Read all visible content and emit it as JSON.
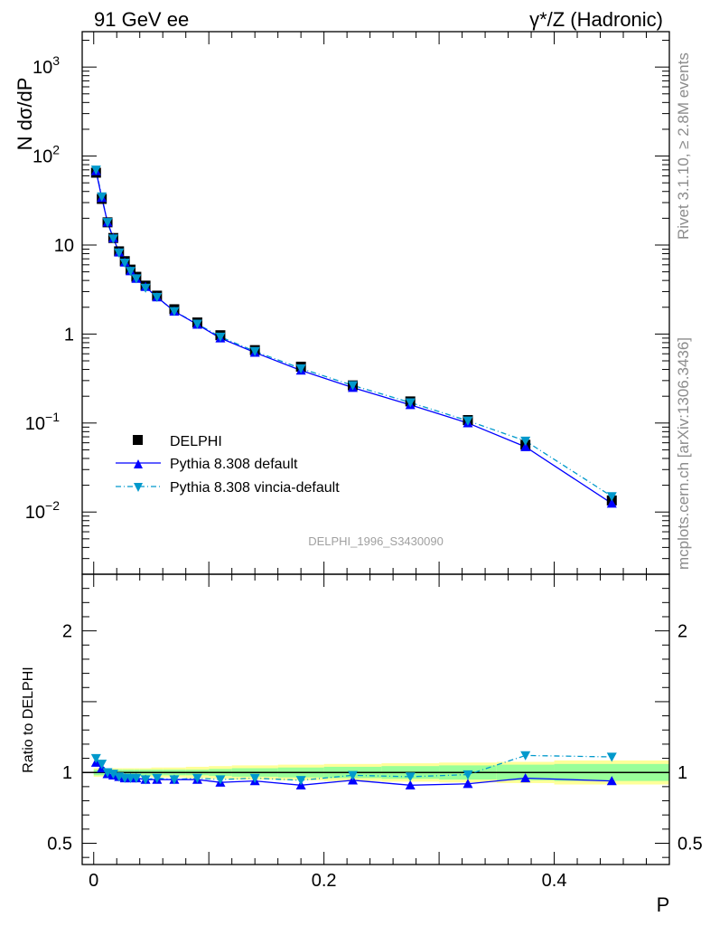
{
  "header": {
    "left_title": "91 GeV ee",
    "right_title": "γ*/Z (Hadronic)"
  },
  "side_text": {
    "rivet": "Rivet 3.1.10, ≥ 2.8M events",
    "mcplots": "mcplots.cern.ch [arXiv:1306.3436]"
  },
  "watermark": "DELPHI_1996_S3430090",
  "legend": {
    "entries": [
      "DELPHI",
      "Pythia 8.308 default",
      "Pythia 8.308 vincia-default"
    ]
  },
  "colors": {
    "data": "#000000",
    "default": "#0000ff",
    "vincia": "#0099cc",
    "band_inner": "#99ff99",
    "band_outer": "#ffff99"
  },
  "chart_data": [
    {
      "type": "scatter",
      "panel": "main",
      "ylabel": "N dσ/dP",
      "yscale": "log",
      "ylim": [
        0.002,
        2500
      ],
      "xlim": [
        -0.01,
        0.5
      ],
      "y_ticks": [
        "10^{-2}",
        "10^{-1}",
        "1",
        "10",
        "10^{2}",
        "10^{3}"
      ],
      "series": [
        {
          "name": "DELPHI",
          "marker": "square",
          "x": [
            0.002,
            0.007,
            0.012,
            0.017,
            0.022,
            0.027,
            0.032,
            0.037,
            0.045,
            0.055,
            0.07,
            0.09,
            0.11,
            0.14,
            0.18,
            0.225,
            0.275,
            0.325,
            0.375,
            0.45
          ],
          "y": [
            65,
            33,
            18,
            12,
            8.5,
            6.6,
            5.3,
            4.4,
            3.5,
            2.7,
            1.9,
            1.35,
            0.97,
            0.66,
            0.43,
            0.265,
            0.175,
            0.108,
            0.057,
            0.0135
          ]
        },
        {
          "name": "Pythia 8.308 default",
          "marker": "triangle-up",
          "x": [
            0.002,
            0.007,
            0.012,
            0.017,
            0.022,
            0.027,
            0.032,
            0.037,
            0.045,
            0.055,
            0.07,
            0.09,
            0.11,
            0.14,
            0.18,
            0.225,
            0.275,
            0.325,
            0.375,
            0.45
          ],
          "y": [
            68,
            34,
            18,
            12,
            8.3,
            6.4,
            5.1,
            4.2,
            3.4,
            2.6,
            1.8,
            1.28,
            0.9,
            0.62,
            0.39,
            0.25,
            0.16,
            0.1,
            0.054,
            0.0125
          ]
        },
        {
          "name": "Pythia 8.308 vincia-default",
          "marker": "triangle-down",
          "x": [
            0.002,
            0.007,
            0.012,
            0.017,
            0.022,
            0.027,
            0.032,
            0.037,
            0.045,
            0.055,
            0.07,
            0.09,
            0.11,
            0.14,
            0.18,
            0.225,
            0.275,
            0.325,
            0.375,
            0.45
          ],
          "y": [
            70,
            35,
            18,
            11.8,
            8.2,
            6.3,
            5.1,
            4.2,
            3.3,
            2.6,
            1.8,
            1.3,
            0.93,
            0.64,
            0.41,
            0.265,
            0.17,
            0.106,
            0.063,
            0.015
          ]
        }
      ]
    },
    {
      "type": "line",
      "panel": "ratio",
      "ylabel": "Ratio to DELPHI",
      "xlabel": "P",
      "ylim": [
        0.35,
        2.4
      ],
      "xlim": [
        -0.01,
        0.5
      ],
      "x_ticks": [
        "0",
        "0.2",
        "0.4"
      ],
      "y_ticks": [
        "0.5",
        "1",
        "2"
      ],
      "band": {
        "x_edges": [
          0.0,
          0.005,
          0.01,
          0.015,
          0.02,
          0.025,
          0.03,
          0.035,
          0.04,
          0.05,
          0.06,
          0.08,
          0.1,
          0.12,
          0.16,
          0.2,
          0.25,
          0.3,
          0.35,
          0.4,
          0.5
        ],
        "inner_half_width": [
          0.02,
          0.02,
          0.02,
          0.02,
          0.02,
          0.02,
          0.02,
          0.02,
          0.02,
          0.02,
          0.02,
          0.02,
          0.025,
          0.03,
          0.035,
          0.04,
          0.045,
          0.05,
          0.055,
          0.06
        ],
        "outer_half_width": [
          0.03,
          0.03,
          0.03,
          0.03,
          0.03,
          0.03,
          0.03,
          0.03,
          0.03,
          0.035,
          0.035,
          0.04,
          0.045,
          0.05,
          0.055,
          0.06,
          0.065,
          0.07,
          0.075,
          0.085
        ]
      },
      "series": [
        {
          "name": "Pythia 8.308 default",
          "x": [
            0.002,
            0.007,
            0.012,
            0.017,
            0.022,
            0.027,
            0.032,
            0.037,
            0.045,
            0.055,
            0.07,
            0.09,
            0.11,
            0.14,
            0.18,
            0.225,
            0.275,
            0.325,
            0.375,
            0.45
          ],
          "y": [
            1.07,
            1.03,
            0.99,
            0.98,
            0.97,
            0.96,
            0.96,
            0.96,
            0.95,
            0.95,
            0.95,
            0.95,
            0.93,
            0.94,
            0.91,
            0.945,
            0.91,
            0.92,
            0.96,
            0.94
          ]
        },
        {
          "name": "Pythia 8.308 vincia-default",
          "x": [
            0.002,
            0.007,
            0.012,
            0.017,
            0.022,
            0.027,
            0.032,
            0.037,
            0.045,
            0.055,
            0.07,
            0.09,
            0.11,
            0.14,
            0.18,
            0.225,
            0.275,
            0.325,
            0.375,
            0.45
          ],
          "y": [
            1.1,
            1.06,
            1.0,
            0.99,
            0.97,
            0.96,
            0.96,
            0.96,
            0.95,
            0.96,
            0.95,
            0.96,
            0.95,
            0.96,
            0.945,
            0.98,
            0.97,
            0.985,
            1.12,
            1.11
          ]
        }
      ]
    }
  ]
}
